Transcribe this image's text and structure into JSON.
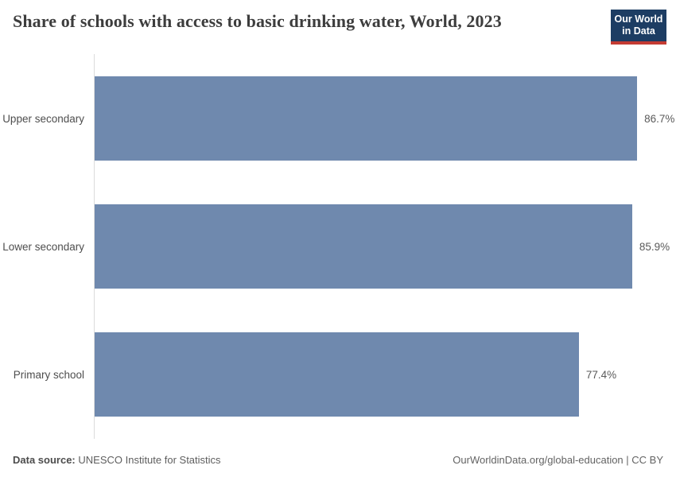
{
  "header": {
    "title": "Share of schools with access to basic drinking water, World, 2023",
    "logo": {
      "line1": "Our World",
      "line2": "in Data"
    }
  },
  "chart_data": {
    "type": "bar",
    "orientation": "horizontal",
    "title": "Share of schools with access to basic drinking water, World, 2023",
    "categories": [
      "Upper secondary",
      "Lower secondary",
      "Primary school"
    ],
    "values": [
      86.7,
      85.9,
      77.4
    ],
    "value_labels": [
      "86.7%",
      "85.9%",
      "77.4%"
    ],
    "xlabel": "",
    "ylabel": "",
    "xlim": [
      0,
      92.9
    ],
    "grid": false,
    "legend": false,
    "bar_color": "#6f89ae"
  },
  "colors": {
    "bar": "#6f89ae",
    "logo_background": "#1d3d63",
    "logo_accent": "#c43b33",
    "axis_line": "#dcdcdc",
    "title_text": "#3d3d3d",
    "category_text": "#4e4e4e",
    "value_text": "#5a5a5a",
    "footer_text": "#5e5e5e"
  },
  "footer": {
    "datasource_label": "Data source:",
    "datasource_value": "UNESCO Institute for Statistics",
    "attribution": "OurWorldinData.org/global-education | CC BY"
  }
}
